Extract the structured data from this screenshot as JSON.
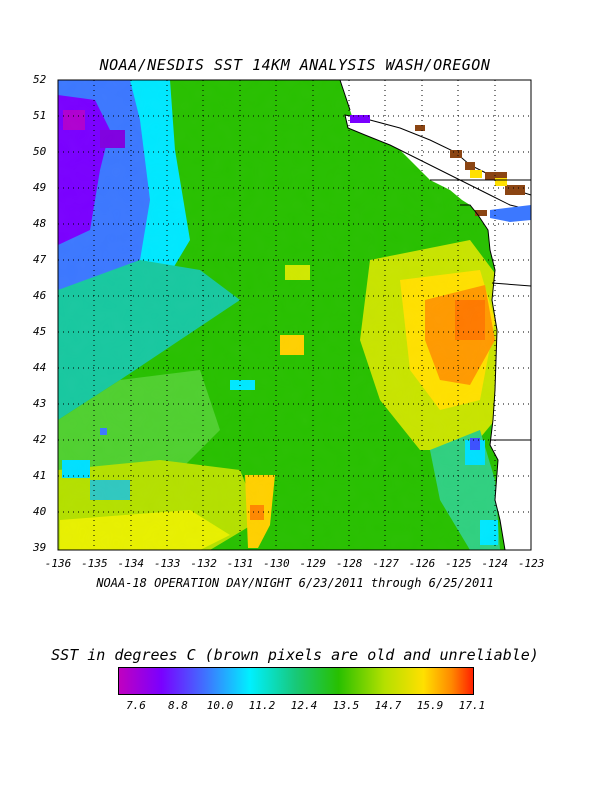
{
  "title": "NOAA/NESDIS SST 14KM ANALYSIS WASH/OREGON",
  "subtitle": "NOAA-18 OPERATION DAY/NIGHT  6/23/2011 through 6/25/2011",
  "legend_title": "SST in degrees C (brown pixels are old and unreliable)",
  "lat_labels": [
    "52",
    "51",
    "50",
    "49",
    "48",
    "47",
    "46",
    "45",
    "44",
    "43",
    "42",
    "41",
    "40",
    "39"
  ],
  "lon_labels": [
    "-136",
    "-135",
    "-134",
    "-133",
    "-132",
    "-131",
    "-130",
    "-129",
    "-128",
    "-127",
    "-126",
    "-125",
    "-124",
    "-123"
  ],
  "colorbar_labels": [
    "7.6",
    "8.8",
    "10.0",
    "11.2",
    "12.4",
    "13.5",
    "14.7",
    "15.9",
    "17.1"
  ],
  "colors": {
    "scale": [
      "#c000c0",
      "#7a00ff",
      "#3c78ff",
      "#00f0ff",
      "#18c878",
      "#28c000",
      "#b4e000",
      "#ffe000",
      "#ff8800",
      "#ff2000"
    ],
    "land": "#ffffff",
    "old_pixels": "#8b4513"
  },
  "map_data": {
    "lat_range": [
      39,
      52
    ],
    "lon_range": [
      -136,
      -123
    ],
    "sst_range_c": [
      7.6,
      17.1
    ]
  }
}
